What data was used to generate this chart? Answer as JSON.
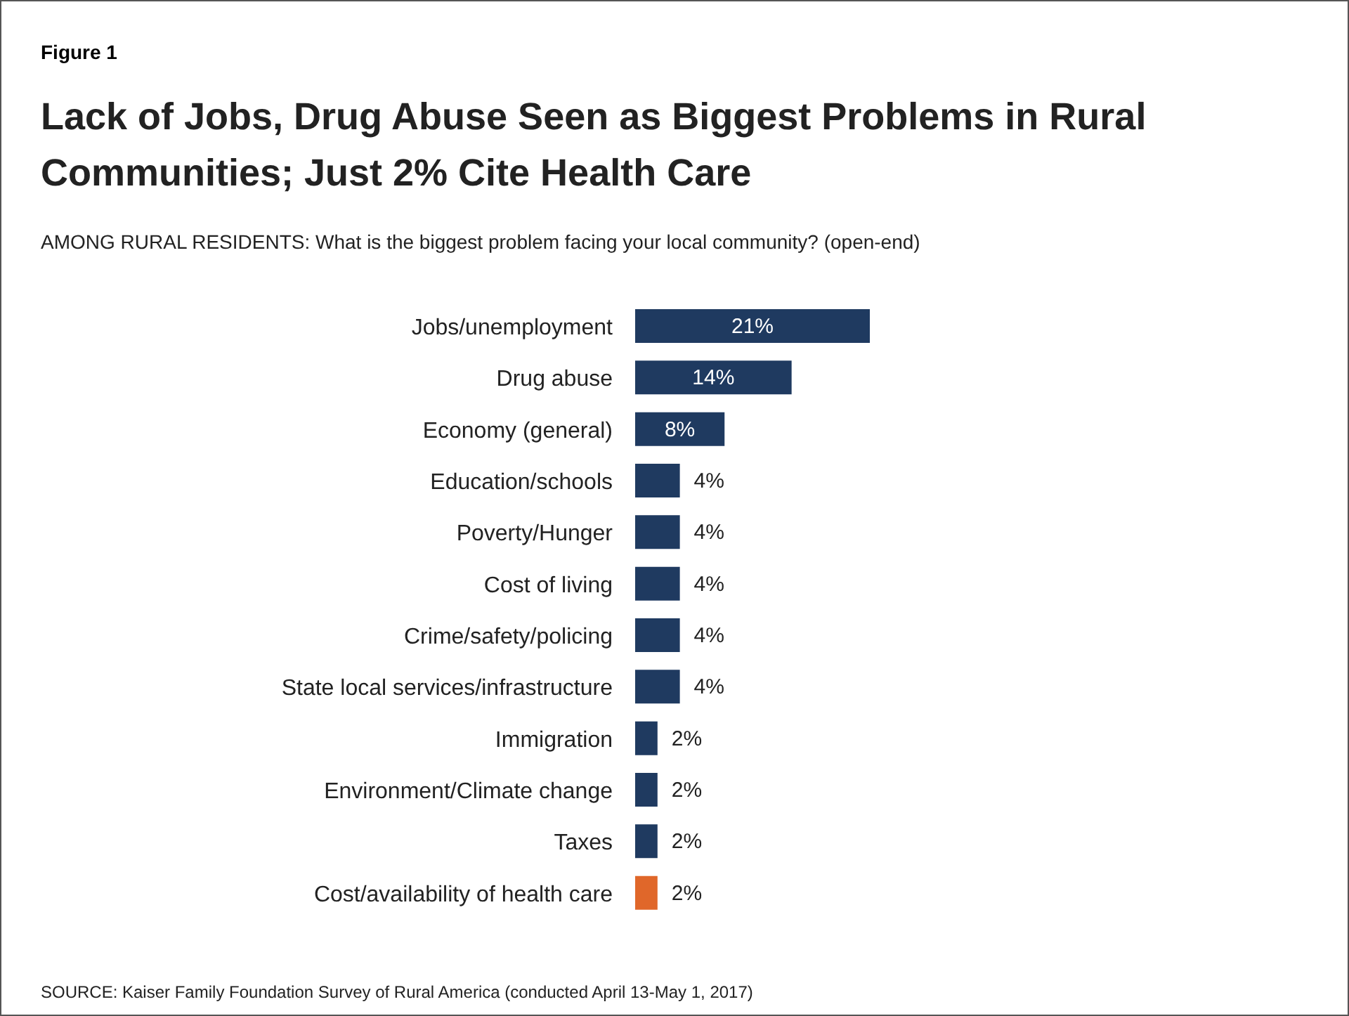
{
  "chart_data": {
    "type": "bar",
    "orientation": "horizontal",
    "title": "Lack of Jobs, Drug Abuse Seen as Biggest Problems in Rural Communities; Just 2% Cite Health Care",
    "subtitle": "AMONG RURAL RESIDENTS: What is the biggest problem facing your local community? (open-end)",
    "annotations": [
      "Figure 1",
      "SOURCE: Kaiser Family Foundation Survey of Rural America (conducted April 13-May 1, 2017)"
    ],
    "categories": [
      "Jobs/unemployment",
      "Drug abuse",
      "Economy (general)",
      "Education/schools",
      "Poverty/Hunger",
      "Cost of living",
      "Crime/safety/policing",
      "State local services/infrastructure",
      "Immigration",
      "Environment/Climate change",
      "Taxes",
      "Cost/availability of health care"
    ],
    "values": [
      21,
      14,
      8,
      4,
      4,
      4,
      4,
      4,
      2,
      2,
      2,
      2
    ],
    "colors": [
      "#1f3a60",
      "#1f3a60",
      "#1f3a60",
      "#1f3a60",
      "#1f3a60",
      "#1f3a60",
      "#1f3a60",
      "#1f3a60",
      "#1f3a60",
      "#1f3a60",
      "#1f3a60",
      "#e0672a"
    ],
    "value_labels": [
      "21%",
      "14%",
      "8%",
      "4%",
      "4%",
      "4%",
      "4%",
      "4%",
      "2%",
      "2%",
      "2%",
      "2%"
    ],
    "legend": false,
    "grid": false
  }
}
